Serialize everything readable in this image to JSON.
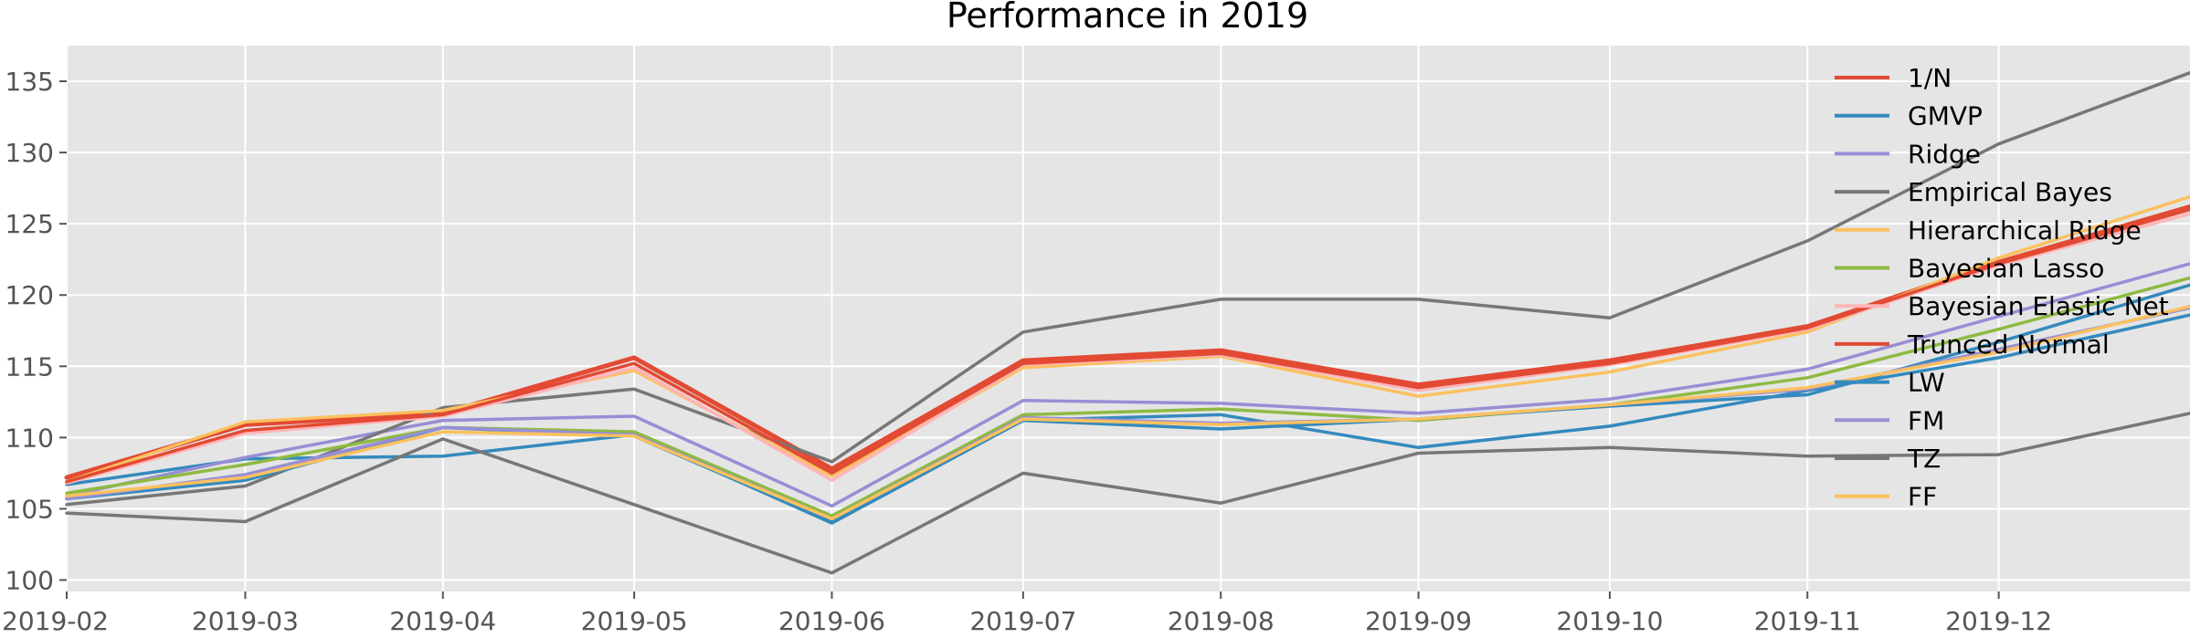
{
  "chart_data": {
    "type": "line",
    "title": "Performance in 2019",
    "xlabel": "",
    "ylabel": "",
    "x_tick_labels": [
      "2019-02",
      "2019-03",
      "2019-04",
      "2019-05",
      "2019-06",
      "2019-07",
      "2019-08",
      "2019-09",
      "2019-10",
      "2019-11",
      "2019-12"
    ],
    "x": [
      "2019-02",
      "2019-03",
      "2019-04",
      "2019-05",
      "2019-06",
      "2019-07",
      "2019-08",
      "2019-09",
      "2019-10",
      "2019-11",
      "2019-12",
      "2019-12-31"
    ],
    "xlim": [
      "2019-02",
      "2019-12-31"
    ],
    "yticks": [
      100,
      105,
      110,
      115,
      120,
      125,
      130,
      135
    ],
    "ylim": [
      99.2,
      137.5
    ],
    "grid": true,
    "legend_position": "top-right",
    "series": [
      {
        "name": "1/N",
        "color": "#E24A33",
        "values": [
          107.2,
          110.9,
          111.7,
          115.6,
          107.8,
          115.4,
          116.1,
          113.7,
          115.4,
          117.8,
          122.3,
          126.2
        ]
      },
      {
        "name": "GMVP",
        "color": "#348ABD",
        "values": [
          106.7,
          108.5,
          108.7,
          110.2,
          104.0,
          111.2,
          111.6,
          109.3,
          110.8,
          113.3,
          115.6,
          118.6
        ]
      },
      {
        "name": "Ridge",
        "color": "#988ED5",
        "values": [
          105.9,
          108.6,
          111.2,
          111.5,
          105.2,
          112.6,
          112.4,
          111.7,
          112.7,
          114.8,
          118.5,
          122.2
        ]
      },
      {
        "name": "Empirical Bayes",
        "color": "#777777",
        "values": [
          105.3,
          106.6,
          112.1,
          113.4,
          108.3,
          117.4,
          119.7,
          119.7,
          118.4,
          123.8,
          130.6,
          135.6
        ]
      },
      {
        "name": "Hierarchical Ridge",
        "color": "#FBC15E",
        "values": [
          106.9,
          111.1,
          111.9,
          114.7,
          107.3,
          114.9,
          115.7,
          112.9,
          114.6,
          117.4,
          122.6,
          126.9
        ]
      },
      {
        "name": "Bayesian Lasso",
        "color": "#8EBA42",
        "values": [
          106.1,
          108.1,
          110.7,
          110.4,
          104.5,
          111.6,
          112.0,
          111.2,
          112.3,
          114.2,
          117.6,
          121.2
        ]
      },
      {
        "name": "Bayesian Elastic Net",
        "color": "#FFB5B8",
        "values": [
          106.8,
          110.3,
          111.5,
          114.9,
          107.0,
          115.1,
          115.8,
          113.3,
          115.1,
          117.6,
          122.1,
          125.7
        ]
      },
      {
        "name": "Trunced Normal",
        "color": "#E24A33",
        "values": [
          106.9,
          110.5,
          111.6,
          115.2,
          107.5,
          115.2,
          115.9,
          113.5,
          115.2,
          117.7,
          122.2,
          126.0
        ]
      },
      {
        "name": "LW",
        "color": "#348ABD",
        "values": [
          105.7,
          107.0,
          110.7,
          110.1,
          104.1,
          111.2,
          110.6,
          111.3,
          112.2,
          113.0,
          116.7,
          120.7
        ]
      },
      {
        "name": "FM",
        "color": "#988ED5",
        "values": [
          105.7,
          107.4,
          110.7,
          110.2,
          104.3,
          111.4,
          111.0,
          111.3,
          112.3,
          113.4,
          116.2,
          119.1
        ]
      },
      {
        "name": "TZ",
        "color": "#777777",
        "values": [
          104.7,
          104.1,
          109.9,
          105.3,
          100.5,
          107.5,
          105.4,
          108.9,
          109.3,
          108.7,
          108.8,
          111.7
        ]
      },
      {
        "name": "FF",
        "color": "#FBC15E",
        "values": [
          105.9,
          107.2,
          110.4,
          110.1,
          104.3,
          111.3,
          110.9,
          111.3,
          112.3,
          113.5,
          116.0,
          119.2
        ]
      }
    ]
  }
}
